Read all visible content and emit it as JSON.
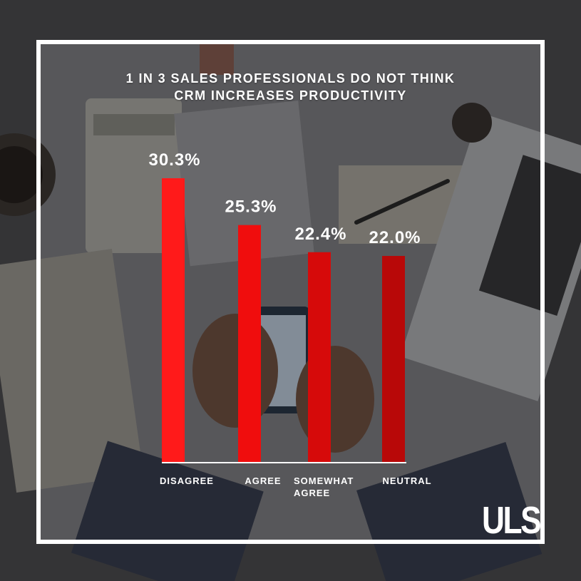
{
  "title_line1": "1 IN 3 SALES PROFESSIONALS DO NOT THINK",
  "title_line2": "CRM INCREASES PRODUCTIVITY",
  "logo_text": "ULS",
  "colors": {
    "bar_gradient": [
      "#ff1a1a",
      "#f00d0d",
      "#d60a0a",
      "#b80808"
    ],
    "frame": "#ffffff",
    "text": "#ffffff",
    "baseline": "#ffffff"
  },
  "chart_data": {
    "type": "bar",
    "title": "1 IN 3 SALES PROFESSIONALS DO NOT THINK CRM INCREASES PRODUCTIVITY",
    "categories": [
      "DISAGREE",
      "AGREE",
      "SOMEWHAT AGREE",
      "NEUTRAL"
    ],
    "category_lines": [
      [
        "DISAGREE"
      ],
      [
        "AGREE"
      ],
      [
        "SOMEWHAT",
        "AGREE"
      ],
      [
        "NEUTRAL"
      ]
    ],
    "values": [
      30.3,
      25.3,
      22.4,
      22.0
    ],
    "value_labels": [
      "30.3%",
      "25.3%",
      "22.4%",
      "22.0%"
    ],
    "ylim": [
      0,
      30.3
    ],
    "grid": false,
    "legend": "none",
    "xlabel": "",
    "ylabel": ""
  }
}
